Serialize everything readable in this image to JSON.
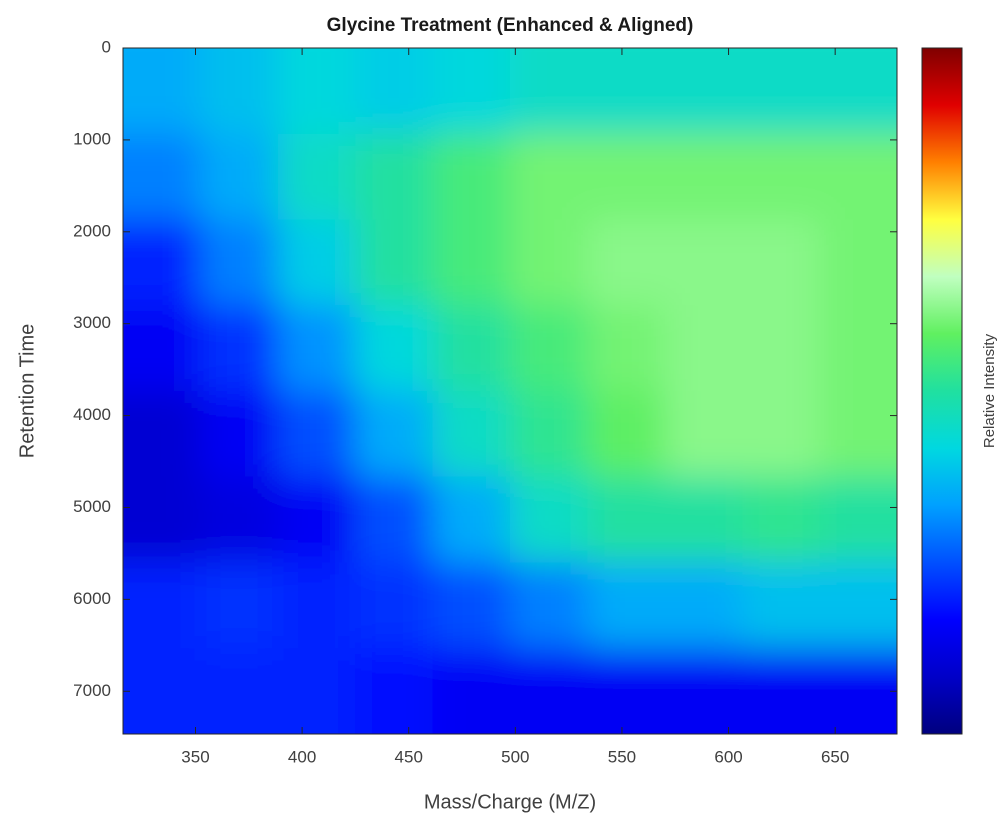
{
  "chart_data": {
    "type": "heatmap",
    "title": "Glycine Treatment (Enhanced & Aligned)",
    "xlabel": "Mass/Charge (M/Z)",
    "ylabel": "Retention Time",
    "colorbar_label": "Relative Intensity",
    "xlim": [
      316,
      679
    ],
    "ylim": [
      0,
      7465
    ],
    "yreverse": true,
    "xticks": [
      350,
      400,
      450,
      500,
      550,
      600,
      650
    ],
    "yticks": [
      0,
      1000,
      2000,
      3000,
      4000,
      5000,
      6000,
      7000
    ],
    "clim": [
      0,
      1
    ],
    "colormap": [
      "#00007f",
      "#0000c8",
      "#0000ff",
      "#0050ff",
      "#00a0ff",
      "#00d8e0",
      "#20e0a0",
      "#60f060",
      "#c0ffc0",
      "#ffff40",
      "#ff8000",
      "#e00000",
      "#800000"
    ],
    "z": [
      [
        0.35,
        0.38,
        0.42,
        0.4,
        0.42,
        0.45,
        0.45,
        0.45,
        0.45,
        0.45
      ],
      [
        0.3,
        0.35,
        0.45,
        0.5,
        0.55,
        0.6,
        0.6,
        0.6,
        0.6,
        0.6
      ],
      [
        0.2,
        0.3,
        0.4,
        0.5,
        0.55,
        0.6,
        0.62,
        0.62,
        0.62,
        0.6
      ],
      [
        0.15,
        0.22,
        0.32,
        0.42,
        0.5,
        0.55,
        0.6,
        0.62,
        0.62,
        0.6
      ],
      [
        0.1,
        0.15,
        0.25,
        0.35,
        0.45,
        0.52,
        0.58,
        0.62,
        0.62,
        0.6
      ],
      [
        0.1,
        0.12,
        0.15,
        0.25,
        0.35,
        0.45,
        0.5,
        0.5,
        0.52,
        0.5
      ],
      [
        0.2,
        0.22,
        0.2,
        0.22,
        0.25,
        0.3,
        0.35,
        0.35,
        0.38,
        0.38
      ],
      [
        0.2,
        0.2,
        0.2,
        0.18,
        0.15,
        0.15,
        0.15,
        0.15,
        0.15,
        0.15
      ]
    ]
  }
}
